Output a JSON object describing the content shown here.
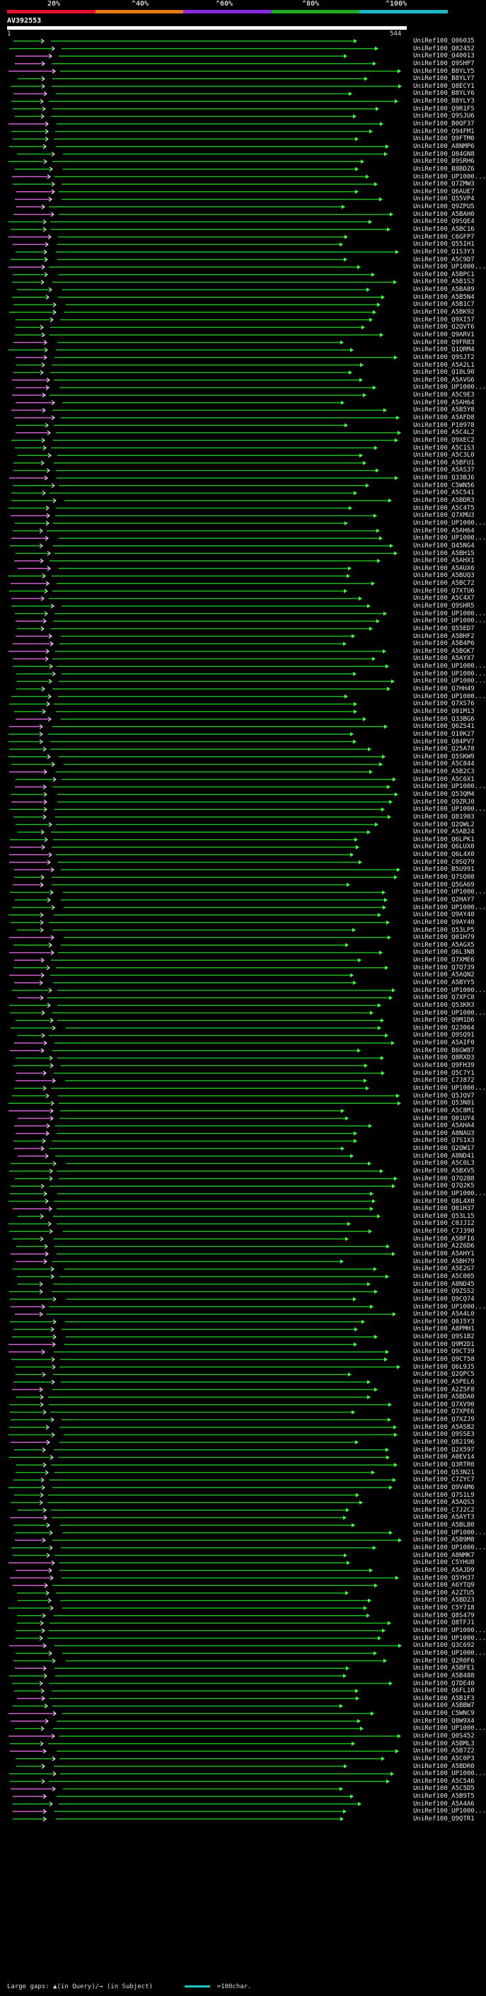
{
  "scale": {
    "labels": [
      "20%",
      "^40%",
      "^60%",
      "^80%",
      "^100%"
    ],
    "colors": [
      "#e8102c",
      "#e87a10",
      "#8a2be2",
      "#1faa1f",
      "#1cb8c8"
    ]
  },
  "query": {
    "name": "AV392553",
    "start": "1",
    "end": "544"
  },
  "colors": {
    "in_query_gap": "#d060d0",
    "aligned": "#22b822",
    "subject_gap_arrow": "#3aff3a"
  },
  "hits": [
    "UniRef100_Q06035",
    "UniRef100_Q02452",
    "UniRef100_Q40013",
    "UniRef100_Q9SHP7",
    "UniRef100_B8YLY5",
    "UniRef100_B8YLY7",
    "UniRef100_Q8ECY1",
    "UniRef100_B8YLY6",
    "UniRef100_B8YLY3",
    "UniRef100_Q9R1F5",
    "UniRef100_Q9SJU6",
    "UniRef100_B0QF37",
    "UniRef100_Q94FM1",
    "UniRef100_Q9FTM0",
    "UniRef100_A8NMP6",
    "UniRef100_Q84GN8",
    "UniRef100_B9SRH6",
    "UniRef100_B8BDZ6",
    "UniRef100_UP1000...",
    "UniRef100_Q7ZMW3",
    "UniRef100_Q6AUE7",
    "UniRef100_Q55VP4",
    "UniRef100_Q9ZPU5",
    "UniRef100_A5BAH0",
    "UniRef100_Q9SQE4",
    "UniRef100_A5BC16",
    "UniRef100_C6GFP7",
    "UniRef100_Q55IH1",
    "UniRef100_Q1S3Y3",
    "UniRef100_A5C9D7",
    "UniRef100_UP1000...",
    "UniRef100_A5BPC1",
    "UniRef100_A5B1S3",
    "UniRef100_A5BA89",
    "UniRef100_A5B5N4",
    "UniRef100_A5B1C7",
    "UniRef100_A5BK92",
    "UniRef100_Q9XI57",
    "UniRef100_Q2QVT6",
    "UniRef100_Q9ARV1",
    "UniRef100_Q9FRB3",
    "UniRef100_Q1QRM4",
    "UniRef100_Q9SJT2",
    "UniRef100_A5A2L1",
    "UniRef100_Q10L90",
    "UniRef100_A5AVG6",
    "UniRef100_UP1000...",
    "UniRef100_A5C9E3",
    "UniRef100_A5AH64",
    "UniRef100_A5B5Y8",
    "UniRef100_A5AFD8",
    "UniRef100_P10978",
    "UniRef100_A5C4L2",
    "UniRef100_Q9XEC2",
    "UniRef100_A5C1S3",
    "UniRef100_A5C3L0",
    "UniRef100_A5BFU1",
    "UniRef100_A5AS37",
    "UniRef100_Q33BJ6",
    "UniRef100_C5WN56",
    "UniRef100_A5C541",
    "UniRef100_A5BDR3",
    "UniRef100_A5C4T5",
    "UniRef100_Q7XMU3",
    "UniRef100_UP1000...",
    "UniRef100_A5AH64",
    "UniRef100_UP1000...",
    "UniRef100_Q45NG4",
    "UniRef100_A5BH15",
    "UniRef100_A5AHX1",
    "UniRef100_A5AUX6",
    "UniRef100_A5BUQ3",
    "UniRef100_A5BC72",
    "UniRef100_Q7XTU6",
    "UniRef100_A5C4X7",
    "UniRef100_Q9SHR5",
    "UniRef100_UP1000...",
    "UniRef100_UP1000...",
    "UniRef100_Q55ED7",
    "UniRef100_A5BHF2",
    "UniRef100_A5B4P6",
    "UniRef100_A5BGK7",
    "UniRef100_A5AYX7",
    "UniRef100_UP1000...",
    "UniRef100_UP1000...",
    "UniRef100_UP1000...",
    "UniRef100_Q7HH49",
    "UniRef100_UP1000...",
    "UniRef100_Q7XS76",
    "UniRef100_Q01M13",
    "UniRef100_Q33BG6",
    "UniRef100_Q6ZS41",
    "UniRef100_Q10K27",
    "UniRef100_Q84PV7",
    "UniRef100_Q25A78",
    "UniRef100_Q5SKW9",
    "UniRef100_A5C844",
    "UniRef100_A5B2C3",
    "UniRef100_A5C6X1",
    "UniRef100_UP1000...",
    "UniRef100_Q53QM4",
    "UniRef100_Q9ZRJ0",
    "UniRef100_UP1000...",
    "UniRef100_Q81903",
    "UniRef100_Q2QWL2",
    "UniRef100_A5AB24",
    "UniRef100_Q6LPK1",
    "UniRef100_Q6LUX0",
    "UniRef100_Q6L4X0",
    "UniRef100_C0SQ79",
    "UniRef100_B5U991",
    "UniRef100_Q7SQ08",
    "UniRef100_Q5GA69",
    "UniRef100_UP1000...",
    "UniRef100_Q2HAY7",
    "UniRef100_UP1000...",
    "UniRef100_Q9AY40",
    "UniRef100_Q9AY40",
    "UniRef100_Q53LP5",
    "UniRef100_Q01H79",
    "UniRef100_A5AGX5",
    "UniRef100_Q6L3N8",
    "UniRef100_Q7XME6",
    "UniRef100_Q7Q739",
    "UniRef100_A5AQN2",
    "UniRef100_A5BYY5",
    "UniRef100_UP1000...",
    "UniRef100_Q7XFC8",
    "UniRef100_Q53KR3",
    "UniRef100_UP1000...",
    "UniRef100_Q9M1D6",
    "UniRef100_Q23064",
    "UniRef100_Q9SQ91",
    "UniRef100_A5AIF0",
    "UniRef100_B6GW87",
    "UniRef100_Q8RXD3",
    "UniRef100_Q9FH39",
    "UniRef100_Q5C7Y1",
    "UniRef100_C7J872",
    "UniRef100_UP1000...",
    "UniRef100_Q5JQV7",
    "UniRef100_Q53N01",
    "UniRef100_A5C8M1",
    "UniRef100_Q01UY4",
    "UniRef100_A5AHA4",
    "UniRef100_A8NAU3",
    "UniRef100_Q7S1X3",
    "UniRef100_Q2QW17",
    "UniRef100_A8ND41",
    "UniRef100_A5C0L3",
    "UniRef100_A5BXV5",
    "UniRef100_Q7Q2B8",
    "UniRef100_Q7Q2K5",
    "UniRef100_UP1000...",
    "UniRef100_Q8L4X0",
    "UniRef100_Q01H37",
    "UniRef100_Q53L15",
    "UniRef100_C0JJ12",
    "UniRef100_C7J390",
    "UniRef100_A5BFI6",
    "UniRef100_A2Z6D6",
    "UniRef100_A5AHY1",
    "UniRef100_A5BH79",
    "UniRef100_A5E2G7",
    "UniRef100_A5C005",
    "UniRef100_A8ND45",
    "UniRef100_Q9ZSS2",
    "UniRef100_Q9CQ74",
    "UniRef100_UP1000...",
    "UniRef100_A5A4L0",
    "UniRef100_Q0J5Y3",
    "UniRef100_A8PMH1",
    "UniRef100_Q9S1B2",
    "UniRef100_Q9M2D1",
    "UniRef100_Q9CT39",
    "UniRef100_Q9CT58",
    "UniRef100_Q6L9J5",
    "UniRef100_Q2QPC5",
    "UniRef100_A5PEL6",
    "UniRef100_A2Z5F8",
    "UniRef100_A5BDA0",
    "UniRef100_Q7XV90",
    "UniRef100_Q7XPE6",
    "UniRef100_Q7XZJ9",
    "UniRef100_A5ASB2",
    "UniRef100_Q9SSE3",
    "UniRef100_Q82196",
    "UniRef100_Q2X597",
    "UniRef100_A0EV14",
    "UniRef100_Q3RTR0",
    "UniRef100_Q53N21",
    "UniRef100_C7ZYC7",
    "UniRef100_Q9V4M6",
    "UniRef100_Q7S1L9",
    "UniRef100_A5AQS3",
    "UniRef100_C7J2C2",
    "UniRef100_A5AYT3",
    "UniRef100_A5BLB0",
    "UniRef100_UP1000...",
    "UniRef100_A5B9M8",
    "UniRef100_UP1000...",
    "UniRef100_A8NMK7",
    "UniRef100_C5YHU8",
    "UniRef100_A5AJD9",
    "UniRef100_Q5YH37",
    "UniRef100_A6YTQ9",
    "UniRef100_A2ZTU5",
    "UniRef100_A5BD23",
    "UniRef100_C5Y718",
    "UniRef100_Q8S479",
    "UniRef100_Q8TFJ1",
    "UniRef100_UP1000...",
    "UniRef100_UP1000...",
    "UniRef100_Q3C692",
    "UniRef100_UP1000...",
    "UniRef100_Q2R0F6",
    "UniRef100_A5BFE1",
    "UniRef100_A5B488",
    "UniRef100_Q7DE40",
    "UniRef100_Q6FL10",
    "UniRef100_A5B1F3",
    "UniRef100_A5BBW7",
    "UniRef100_C5WNC9",
    "UniRef100_Q8W9X4",
    "UniRef100_UP1000...",
    "UniRef100_Q0S452",
    "UniRef100_A5BML3",
    "UniRef100_A5B7Z2",
    "UniRef100_A5C0P3",
    "UniRef100_A5BDR0",
    "UniRef100_UP1000...",
    "UniRef100_A5C546",
    "UniRef100_A5C5D5",
    "UniRef100_A5B9T5",
    "UniRef100_A5A4A6",
    "UniRef100_UP1000...",
    "UniRef100_Q9QTR1"
  ],
  "legend": {
    "gaps": "Large gaps: ▲(in Query)/→ (in Subject)",
    "scale": "=100char."
  }
}
